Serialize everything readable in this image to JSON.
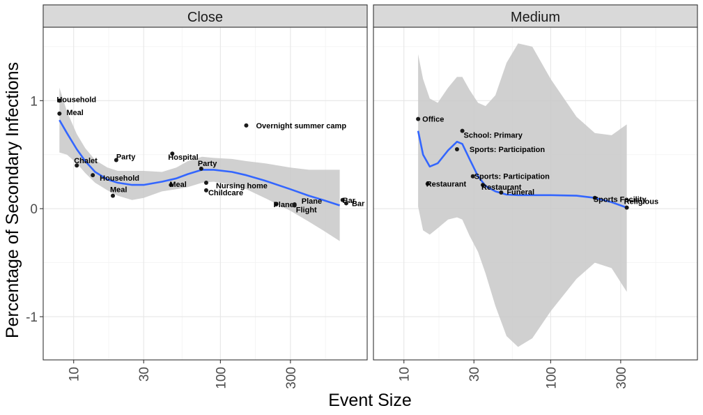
{
  "chart_data": {
    "type": "scatter",
    "xlabel": "Event Size",
    "ylabel": "Percentage of Secondary Infections",
    "xscale": "log10",
    "xlim": [
      6.2,
      1000
    ],
    "ylim": [
      -1.4,
      1.68
    ],
    "xticks": [
      10,
      30,
      100,
      300
    ],
    "xtick_labels": [
      "10",
      "30",
      "100",
      "300"
    ],
    "yticks": [
      -1,
      0,
      1
    ],
    "ytick_labels": [
      "-1",
      "0",
      "1"
    ],
    "grid": true,
    "colors": {
      "smooth": "#3366ff",
      "band": "#c8c8c8",
      "point": "#1a1a1a",
      "strip": "#d9d9d9"
    },
    "panels": [
      {
        "strip": "Close",
        "points": [
          {
            "x": 8.0,
            "y": 1.0,
            "label": "Household"
          },
          {
            "x": 8.0,
            "y": 0.88,
            "label": "Meal"
          },
          {
            "x": 10.5,
            "y": 0.4,
            "label": "Chalet"
          },
          {
            "x": 13.5,
            "y": 0.31,
            "label": "Household"
          },
          {
            "x": 19.5,
            "y": 0.45,
            "label": "Party"
          },
          {
            "x": 18.5,
            "y": 0.12,
            "label": "Meal"
          },
          {
            "x": 47,
            "y": 0.51,
            "label": "Hospital"
          },
          {
            "x": 46,
            "y": 0.22,
            "label": "Meal"
          },
          {
            "x": 74,
            "y": 0.37,
            "label": "Party"
          },
          {
            "x": 80,
            "y": 0.24,
            "label": "Nursing home"
          },
          {
            "x": 80,
            "y": 0.17,
            "label": "Childcare"
          },
          {
            "x": 150,
            "y": 0.77,
            "label": "Overnight summer camp"
          },
          {
            "x": 240,
            "y": 0.04,
            "label": "Plane"
          },
          {
            "x": 320,
            "y": 0.04,
            "label": "Plane"
          },
          {
            "x": 320,
            "y": 0.03,
            "label": "Flight"
          },
          {
            "x": 680,
            "y": 0.08,
            "label": "Bar"
          },
          {
            "x": 720,
            "y": 0.05,
            "label": "Bar"
          }
        ],
        "smooth": {
          "x": [
            8,
            9,
            10.5,
            12,
            14,
            17,
            20,
            25,
            30,
            40,
            50,
            60,
            75,
            90,
            120,
            150,
            200,
            300,
            400,
            500,
            650
          ],
          "y": [
            0.82,
            0.7,
            0.55,
            0.44,
            0.34,
            0.27,
            0.24,
            0.22,
            0.22,
            0.25,
            0.28,
            0.32,
            0.36,
            0.36,
            0.34,
            0.31,
            0.26,
            0.18,
            0.12,
            0.08,
            0.03
          ],
          "lower": [
            0.52,
            0.5,
            0.42,
            0.33,
            0.24,
            0.17,
            0.12,
            0.08,
            0.1,
            0.16,
            0.18,
            0.2,
            0.24,
            0.25,
            0.22,
            0.18,
            0.1,
            -0.02,
            -0.12,
            -0.2,
            -0.3
          ],
          "upper": [
            1.12,
            0.9,
            0.69,
            0.56,
            0.45,
            0.38,
            0.35,
            0.35,
            0.35,
            0.34,
            0.38,
            0.44,
            0.48,
            0.47,
            0.46,
            0.44,
            0.42,
            0.38,
            0.36,
            0.36,
            0.36
          ]
        }
      },
      {
        "strip": "Medium",
        "points": [
          {
            "x": 12.5,
            "y": 0.83,
            "label": "Office"
          },
          {
            "x": 25,
            "y": 0.72,
            "label": "School: Primary"
          },
          {
            "x": 23,
            "y": 0.55,
            "label": "Sports: Participation"
          },
          {
            "x": 29.5,
            "y": 0.3,
            "label": "Sports: Participation"
          },
          {
            "x": 14.5,
            "y": 0.23,
            "label": "Restaurant"
          },
          {
            "x": 34.5,
            "y": 0.22,
            "label": "Restaurant"
          },
          {
            "x": 46,
            "y": 0.15,
            "label": "Funeral"
          },
          {
            "x": 200,
            "y": 0.1,
            "label": "Sports Facility"
          },
          {
            "x": 330,
            "y": 0.01,
            "label": "Religious"
          }
        ],
        "smooth": {
          "x": [
            12.5,
            13.5,
            15,
            17,
            20,
            23,
            25,
            28,
            32,
            36,
            42,
            50,
            60,
            75,
            100,
            150,
            200,
            260,
            330
          ],
          "y": [
            0.72,
            0.5,
            0.39,
            0.42,
            0.54,
            0.62,
            0.6,
            0.46,
            0.3,
            0.21,
            0.16,
            0.13,
            0.125,
            0.125,
            0.125,
            0.12,
            0.1,
            0.06,
            0.01
          ],
          "lower": [
            0.02,
            -0.2,
            -0.24,
            -0.18,
            -0.1,
            -0.08,
            -0.1,
            -0.25,
            -0.4,
            -0.6,
            -0.9,
            -1.18,
            -1.28,
            -1.2,
            -0.95,
            -0.65,
            -0.5,
            -0.55,
            -0.77
          ],
          "upper": [
            1.43,
            1.2,
            1.02,
            0.98,
            1.12,
            1.22,
            1.22,
            1.1,
            0.98,
            0.95,
            1.05,
            1.35,
            1.53,
            1.5,
            1.2,
            0.85,
            0.7,
            0.68,
            0.78
          ]
        }
      }
    ]
  }
}
